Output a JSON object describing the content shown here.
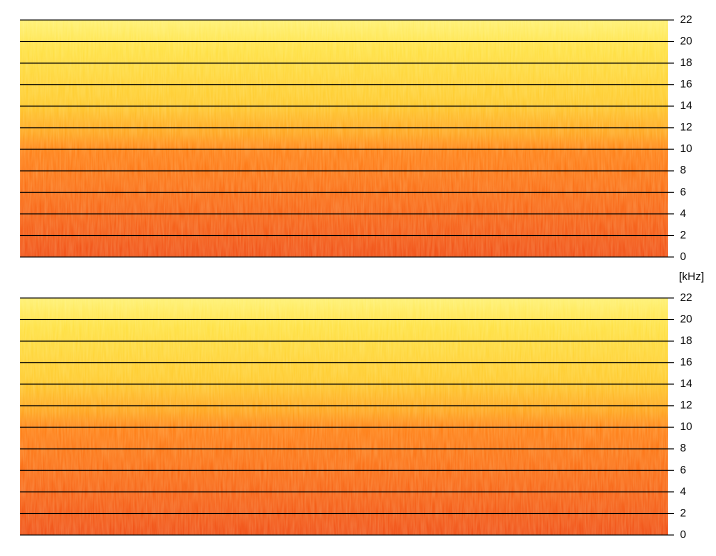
{
  "chart_data": [
    {
      "type": "spectrogram",
      "ylim": [
        0,
        22
      ],
      "yticks": [
        0,
        2,
        4,
        6,
        8,
        10,
        12,
        14,
        16,
        18,
        20,
        22
      ],
      "grid": true
    },
    {
      "type": "spectrogram",
      "ylabel": "[kHz]",
      "ylim": [
        0,
        22
      ],
      "yticks": [
        0,
        2,
        4,
        6,
        8,
        10,
        12,
        14,
        16,
        18,
        20,
        22
      ],
      "grid": true
    }
  ]
}
